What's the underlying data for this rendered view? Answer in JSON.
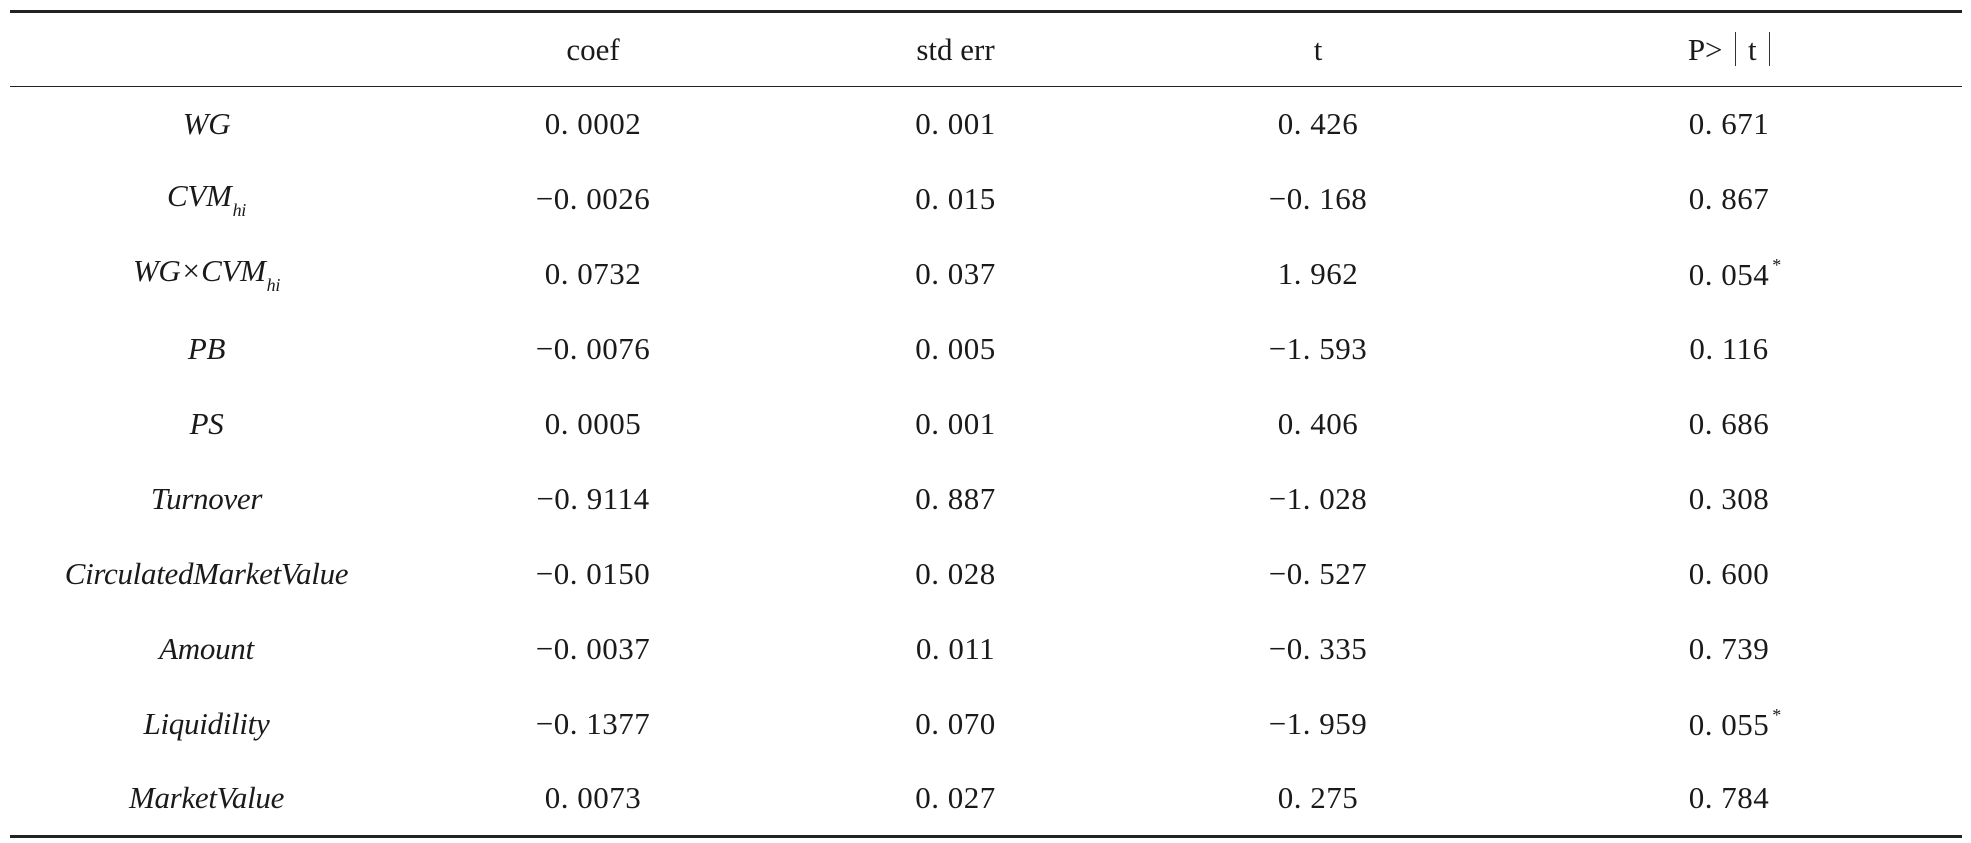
{
  "table": {
    "headers": {
      "variable": "",
      "coef": "coef",
      "std_err": "std err",
      "t": "t",
      "p_prefix": "P>",
      "p_inner": "t"
    },
    "rows": [
      {
        "var_main": "WG",
        "var_sub": "",
        "coef": "0. 0002",
        "std_err": "0. 001",
        "t": "0. 426",
        "p": "0. 671",
        "sig": ""
      },
      {
        "var_main": "CVM",
        "var_sub": "hi",
        "coef": "−0. 0026",
        "std_err": "0. 015",
        "t": "−0. 168",
        "p": "0. 867",
        "sig": ""
      },
      {
        "var_main": "WG×CVM",
        "var_sub": "hi",
        "coef": "0. 0732",
        "std_err": "0. 037",
        "t": "1. 962",
        "p": "0. 054",
        "sig": "*"
      },
      {
        "var_main": "PB",
        "var_sub": "",
        "coef": "−0. 0076",
        "std_err": "0. 005",
        "t": "−1. 593",
        "p": "0. 116",
        "sig": ""
      },
      {
        "var_main": "PS",
        "var_sub": "",
        "coef": "0. 0005",
        "std_err": "0. 001",
        "t": "0. 406",
        "p": "0. 686",
        "sig": ""
      },
      {
        "var_main": "Turnover",
        "var_sub": "",
        "coef": "−0. 9114",
        "std_err": "0. 887",
        "t": "−1. 028",
        "p": "0. 308",
        "sig": ""
      },
      {
        "var_main": "CirculatedMarketValue",
        "var_sub": "",
        "coef": "−0. 0150",
        "std_err": "0. 028",
        "t": "−0. 527",
        "p": "0. 600",
        "sig": ""
      },
      {
        "var_main": "Amount",
        "var_sub": "",
        "coef": "−0. 0037",
        "std_err": "0. 011",
        "t": "−0. 335",
        "p": "0. 739",
        "sig": ""
      },
      {
        "var_main": "Liquidility",
        "var_sub": "",
        "coef": "−0. 1377",
        "std_err": "0. 070",
        "t": "−1. 959",
        "p": "0. 055",
        "sig": "*"
      },
      {
        "var_main": "MarketValue",
        "var_sub": "",
        "coef": "0. 0073",
        "std_err": "0. 027",
        "t": "0. 275",
        "p": "0. 784",
        "sig": ""
      }
    ]
  }
}
